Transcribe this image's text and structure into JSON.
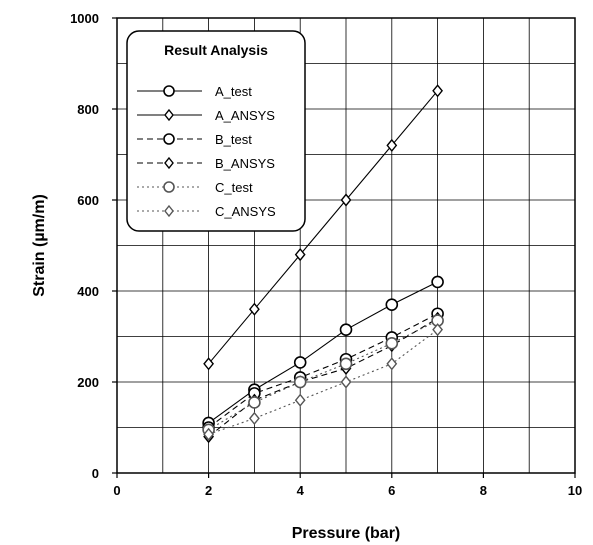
{
  "chart_data": {
    "type": "line",
    "title": "",
    "xlabel": "Pressure (bar)",
    "ylabel": "Strain (µm/m)",
    "xlim": [
      0,
      10
    ],
    "ylim": [
      0,
      1000
    ],
    "xticks": [
      0,
      2,
      4,
      6,
      8,
      10
    ],
    "yticks": [
      0,
      200,
      400,
      600,
      800,
      1000
    ],
    "grid": true,
    "legend": {
      "title": "Result Analysis",
      "placement": "top-left"
    },
    "x": [
      2,
      3,
      4,
      5,
      6,
      7
    ],
    "series": [
      {
        "name": "A_test",
        "values": [
          110,
          183,
          243,
          315,
          370,
          420
        ],
        "marker": "circle",
        "line": "solid",
        "color": "#000000"
      },
      {
        "name": "A_ANSYS",
        "values": [
          240,
          360,
          480,
          600,
          720,
          840
        ],
        "marker": "diamond",
        "line": "solid",
        "color": "#000000"
      },
      {
        "name": "B_test",
        "values": [
          100,
          175,
          210,
          250,
          298,
          350
        ],
        "marker": "circle",
        "line": "dashed",
        "color": "#000000"
      },
      {
        "name": "B_ANSYS",
        "values": [
          80,
          160,
          200,
          230,
          280,
          340
        ],
        "marker": "diamond",
        "line": "dashed",
        "color": "#000000"
      },
      {
        "name": "C_test",
        "values": [
          95,
          155,
          200,
          240,
          285,
          335
        ],
        "marker": "circle",
        "line": "dotted",
        "color": "#555555"
      },
      {
        "name": "C_ANSYS",
        "values": [
          85,
          120,
          160,
          200,
          240,
          315
        ],
        "marker": "diamond",
        "line": "dotted",
        "color": "#555555"
      }
    ]
  }
}
